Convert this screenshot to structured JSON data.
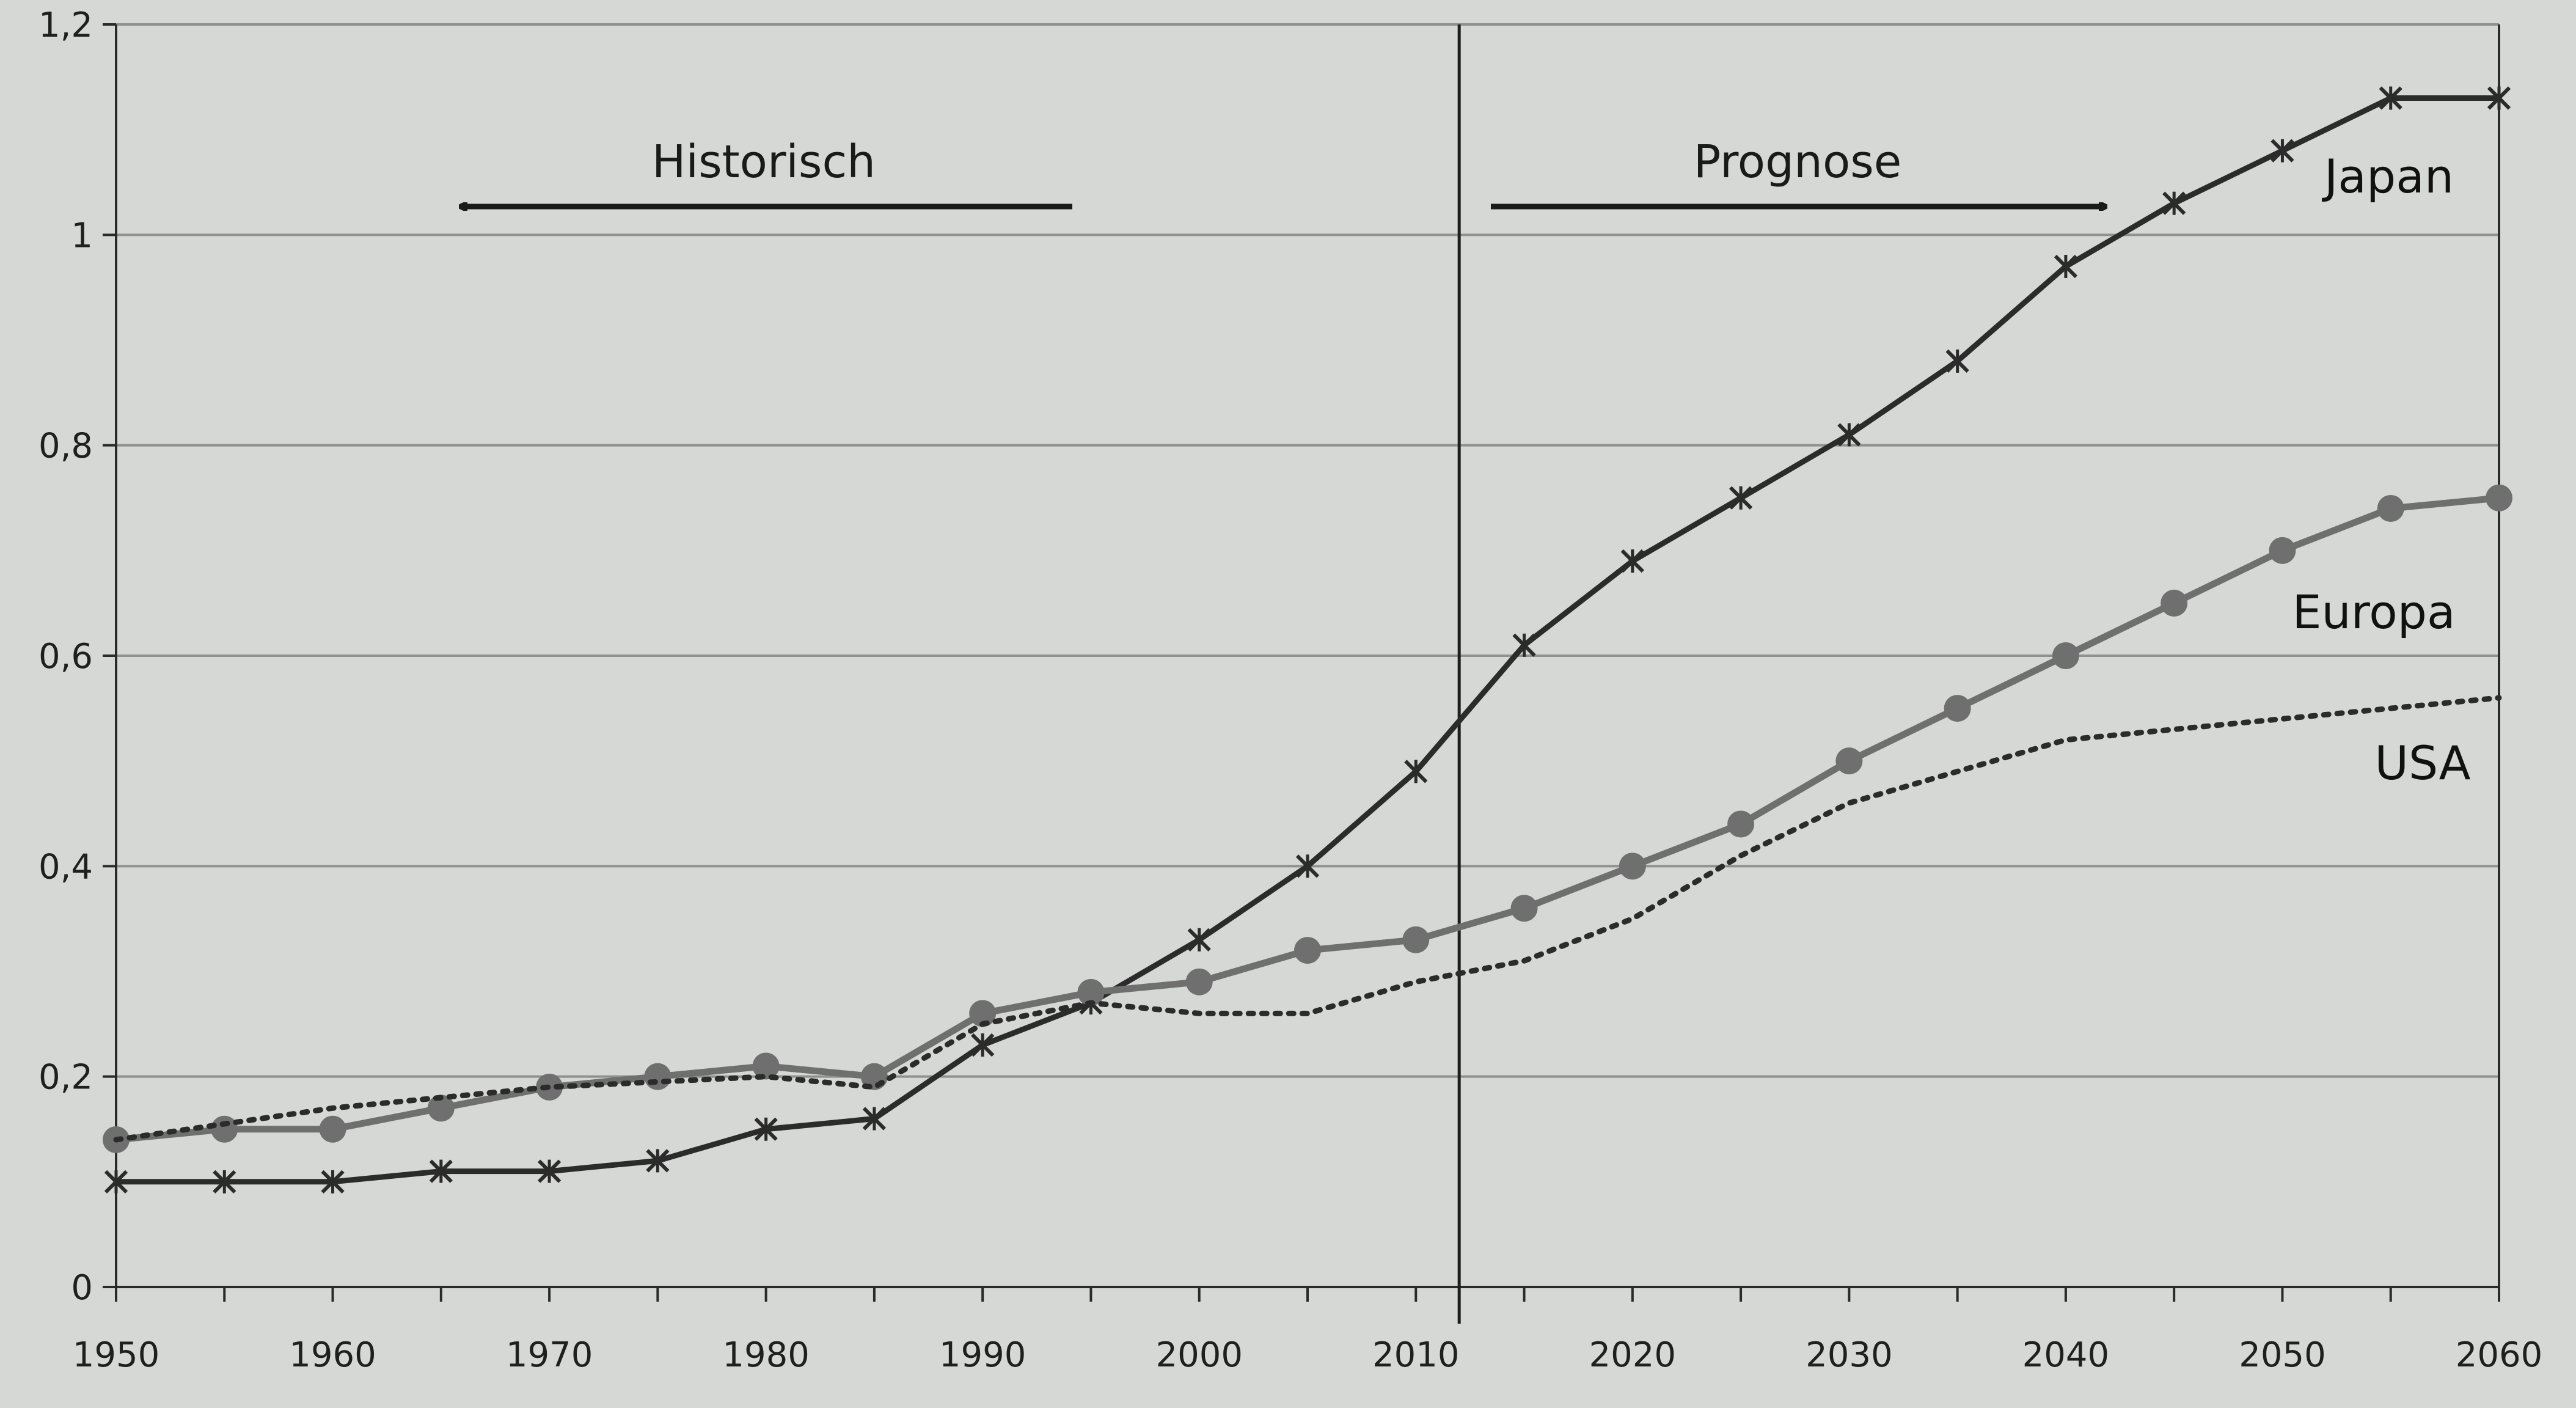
{
  "chart_data": {
    "type": "line",
    "title": "",
    "xlabel": "",
    "ylabel": "",
    "xlim": [
      1950,
      2060
    ],
    "ylim": [
      0,
      1.2
    ],
    "x_ticks": [
      1950,
      1960,
      1970,
      1980,
      1990,
      2000,
      2010,
      2020,
      2030,
      2040,
      2050,
      2060
    ],
    "x_tick_labels": [
      "1950",
      "1960",
      "1970",
      "1980",
      "1990",
      "2000",
      "2010",
      "2020",
      "2030",
      "2040",
      "2050",
      "2060"
    ],
    "y_ticks": [
      0,
      0.2,
      0.4,
      0.6,
      0.8,
      1.0,
      1.2
    ],
    "y_tick_labels": [
      "0",
      "0,2",
      "0,4",
      "0,6",
      "0,8",
      "1",
      "1,2"
    ],
    "grid": true,
    "divider_x": 2012,
    "regions": {
      "historical": "Historisch",
      "forecast": "Prognose"
    },
    "series": [
      {
        "name": "Japan",
        "marker": "x",
        "color": "#2b2b2b",
        "x": [
          1950,
          1955,
          1960,
          1965,
          1970,
          1975,
          1980,
          1985,
          1990,
          1995,
          2000,
          2005,
          2010,
          2015,
          2020,
          2025,
          2030,
          2035,
          2040,
          2045,
          2050,
          2055,
          2060
        ],
        "values": [
          0.1,
          0.1,
          0.1,
          0.11,
          0.11,
          0.12,
          0.15,
          0.16,
          0.23,
          0.27,
          0.33,
          0.4,
          0.49,
          0.61,
          0.69,
          0.75,
          0.81,
          0.88,
          0.97,
          1.03,
          1.08,
          1.13,
          1.13
        ]
      },
      {
        "name": "Europa",
        "marker": "dot",
        "color": "#6f6f6f",
        "x": [
          1950,
          1955,
          1960,
          1965,
          1970,
          1975,
          1980,
          1985,
          1990,
          1995,
          2000,
          2005,
          2010,
          2015,
          2020,
          2025,
          2030,
          2035,
          2040,
          2045,
          2050,
          2055,
          2060
        ],
        "values": [
          0.14,
          0.15,
          0.15,
          0.17,
          0.19,
          0.2,
          0.21,
          0.2,
          0.26,
          0.28,
          0.29,
          0.32,
          0.33,
          0.36,
          0.4,
          0.44,
          0.5,
          0.55,
          0.6,
          0.65,
          0.7,
          0.74,
          0.75
        ]
      },
      {
        "name": "USA",
        "marker": "none",
        "line_style": "dotted",
        "color": "#2b2b2b",
        "x": [
          1950,
          1960,
          1970,
          1980,
          1985,
          1990,
          1995,
          2000,
          2005,
          2010,
          2015,
          2020,
          2025,
          2030,
          2035,
          2040,
          2045,
          2050,
          2055,
          2060
        ],
        "values": [
          0.14,
          0.17,
          0.19,
          0.2,
          0.19,
          0.25,
          0.27,
          0.26,
          0.26,
          0.29,
          0.31,
          0.35,
          0.41,
          0.46,
          0.49,
          0.52,
          0.53,
          0.54,
          0.55,
          0.56
        ]
      }
    ],
    "legend": "inline-labels-right"
  }
}
